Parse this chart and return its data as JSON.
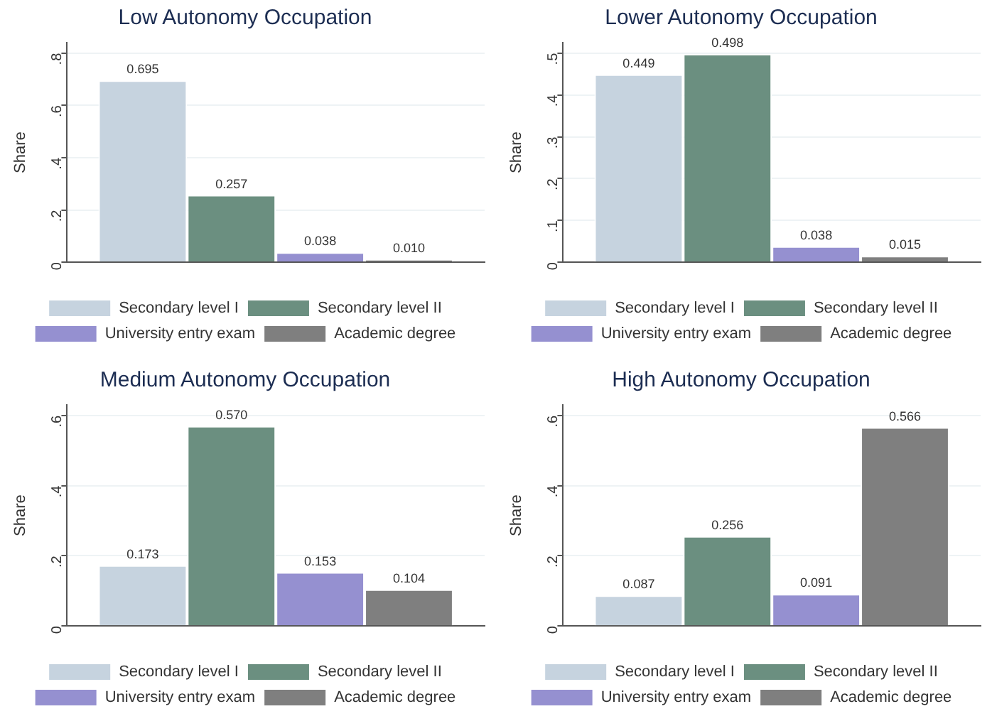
{
  "chart_data": [
    {
      "type": "bar",
      "title": "Low Autonomy Occupation",
      "ylabel": "Share",
      "categories": [
        null
      ],
      "ylim": [
        0,
        0.84
      ],
      "yticks": [
        {
          "value": 0,
          "label": "0"
        },
        {
          "value": 0.2,
          "label": ".2"
        },
        {
          "value": 0.4,
          "label": ".4"
        },
        {
          "value": 0.6,
          "label": ".6"
        },
        {
          "value": 0.8,
          "label": ".8"
        }
      ],
      "grid": "y",
      "legend": "bottom",
      "series": [
        {
          "name": "Secondary level I",
          "color": "#c6d3df",
          "values": [
            0.695
          ],
          "value_labels": [
            "0.695"
          ]
        },
        {
          "name": "Secondary level II",
          "color": "#6b8f80",
          "values": [
            0.257
          ],
          "value_labels": [
            "0.257"
          ]
        },
        {
          "name": "University entry exam",
          "color": "#9590d0",
          "values": [
            0.038
          ],
          "value_labels": [
            "0.038"
          ]
        },
        {
          "name": "Academic degree",
          "color": "#7f7f7f",
          "values": [
            0.01
          ],
          "value_labels": [
            "0.010"
          ]
        }
      ]
    },
    {
      "type": "bar",
      "title": "Lower Autonomy Occupation",
      "ylabel": "Share",
      "categories": [
        null
      ],
      "ylim": [
        0,
        0.525
      ],
      "yticks": [
        {
          "value": 0,
          "label": "0"
        },
        {
          "value": 0.1,
          "label": ".1"
        },
        {
          "value": 0.2,
          "label": ".2"
        },
        {
          "value": 0.3,
          "label": ".3"
        },
        {
          "value": 0.4,
          "label": ".4"
        },
        {
          "value": 0.5,
          "label": ".5"
        }
      ],
      "grid": "y",
      "legend": "bottom",
      "series": [
        {
          "name": "Secondary level I",
          "color": "#c6d3df",
          "values": [
            0.449
          ],
          "value_labels": [
            "0.449"
          ]
        },
        {
          "name": "Secondary level II",
          "color": "#6b8f80",
          "values": [
            0.498
          ],
          "value_labels": [
            "0.498"
          ]
        },
        {
          "name": "University entry exam",
          "color": "#9590d0",
          "values": [
            0.038
          ],
          "value_labels": [
            "0.038"
          ]
        },
        {
          "name": "Academic degree",
          "color": "#7f7f7f",
          "values": [
            0.015
          ],
          "value_labels": [
            "0.015"
          ]
        }
      ]
    },
    {
      "type": "bar",
      "title": "Medium Autonomy Occupation",
      "ylabel": "Share",
      "categories": [
        null
      ],
      "ylim": [
        0,
        0.63
      ],
      "yticks": [
        {
          "value": 0,
          "label": "0"
        },
        {
          "value": 0.2,
          "label": ".2"
        },
        {
          "value": 0.4,
          "label": ".4"
        },
        {
          "value": 0.6,
          "label": ".6"
        }
      ],
      "grid": "y",
      "legend": "bottom",
      "series": [
        {
          "name": "Secondary level I",
          "color": "#c6d3df",
          "values": [
            0.173
          ],
          "value_labels": [
            "0.173"
          ]
        },
        {
          "name": "Secondary level II",
          "color": "#6b8f80",
          "values": [
            0.57
          ],
          "value_labels": [
            "0.570"
          ]
        },
        {
          "name": "University entry exam",
          "color": "#9590d0",
          "values": [
            0.153
          ],
          "value_labels": [
            "0.153"
          ]
        },
        {
          "name": "Academic degree",
          "color": "#7f7f7f",
          "values": [
            0.104
          ],
          "value_labels": [
            "0.104"
          ]
        }
      ]
    },
    {
      "type": "bar",
      "title": "High Autonomy Occupation",
      "ylabel": "Share",
      "categories": [
        null
      ],
      "ylim": [
        0,
        0.63
      ],
      "yticks": [
        {
          "value": 0,
          "label": "0"
        },
        {
          "value": 0.2,
          "label": ".2"
        },
        {
          "value": 0.4,
          "label": ".4"
        },
        {
          "value": 0.6,
          "label": ".6"
        }
      ],
      "grid": "y",
      "legend": "bottom",
      "series": [
        {
          "name": "Secondary level I",
          "color": "#c6d3df",
          "values": [
            0.087
          ],
          "value_labels": [
            "0.087"
          ]
        },
        {
          "name": "Secondary level II",
          "color": "#6b8f80",
          "values": [
            0.256
          ],
          "value_labels": [
            "0.256"
          ]
        },
        {
          "name": "University entry exam",
          "color": "#9590d0",
          "values": [
            0.091
          ],
          "value_labels": [
            "0.091"
          ]
        },
        {
          "name": "Academic degree",
          "color": "#7f7f7f",
          "values": [
            0.566
          ],
          "value_labels": [
            "0.566"
          ]
        }
      ]
    }
  ]
}
